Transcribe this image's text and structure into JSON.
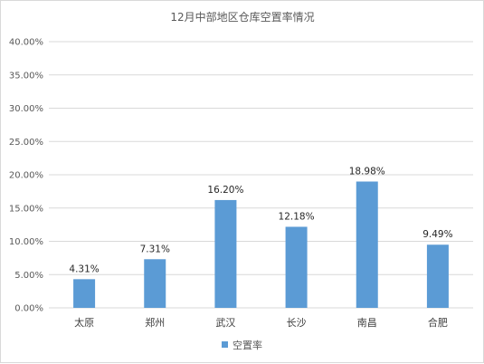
{
  "chart_data": {
    "type": "bar",
    "title": "12月中部地区仓库空置率情况",
    "categories": [
      "太原",
      "郑州",
      "武汉",
      "长沙",
      "南昌",
      "合肥"
    ],
    "series": [
      {
        "name": "空置率",
        "values": [
          4.31,
          7.31,
          16.2,
          12.18,
          18.98,
          9.49
        ],
        "data_labels": [
          "4.31%",
          "7.31%",
          "16.20%",
          "12.18%",
          "18.98%",
          "9.49%"
        ],
        "color": "#5b9bd5"
      }
    ],
    "y_ticks": [
      "0.00%",
      "5.00%",
      "10.00%",
      "15.00%",
      "20.00%",
      "25.00%",
      "30.00%",
      "35.00%",
      "40.00%"
    ],
    "ylim": [
      0,
      40
    ],
    "grid": true,
    "legend_position": "bottom",
    "gridline_color": "#d9d9d9"
  }
}
